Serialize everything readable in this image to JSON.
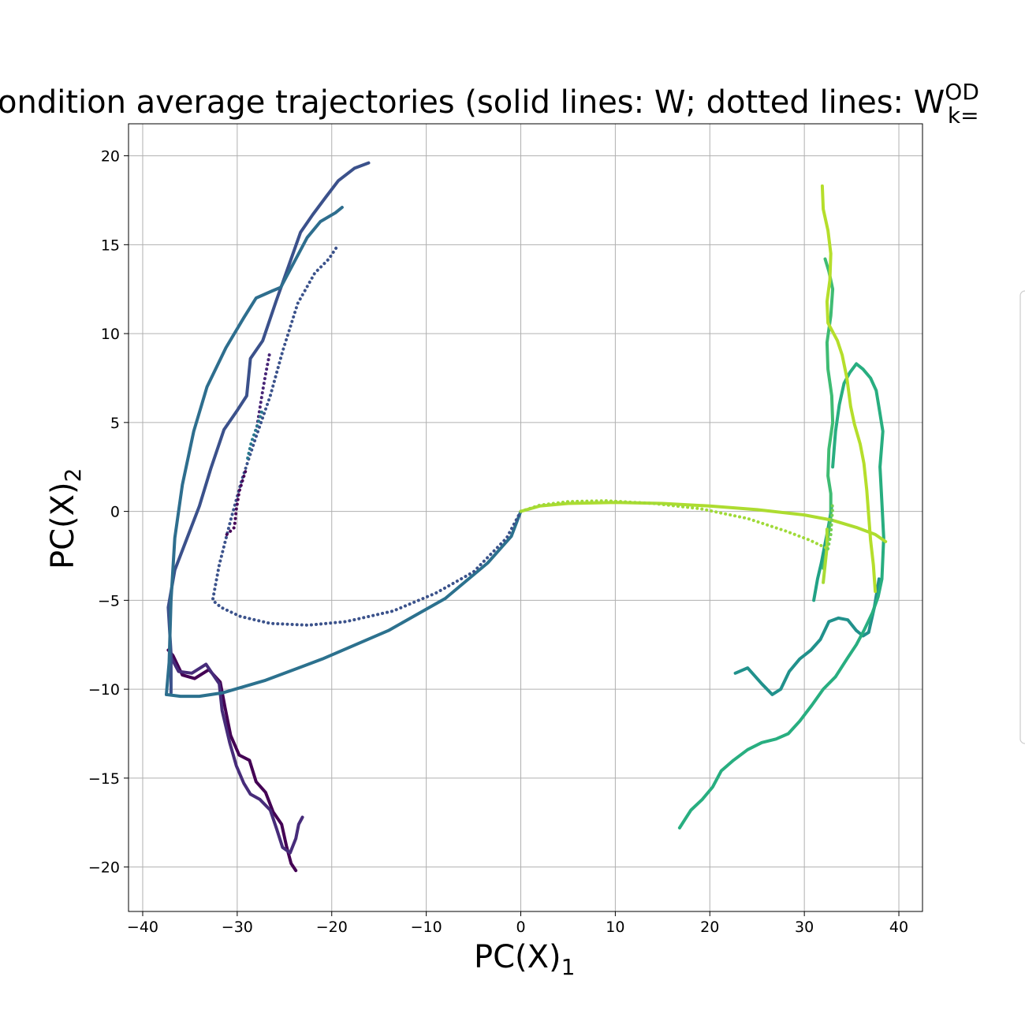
{
  "chart_data": {
    "type": "line",
    "title": "ondition average trajectories (solid lines: W; dotted lines: W",
    "title_sup": "OD",
    "title_sub": "k=",
    "xlabel": "PC(X)",
    "xlabel_sub": "1",
    "ylabel": "PC(X)",
    "ylabel_sub": "2",
    "xlim": [
      -41.5,
      42.5
    ],
    "ylim": [
      -22.5,
      21.8
    ],
    "xticks": [
      -40,
      -30,
      -20,
      -10,
      0,
      10,
      20,
      30,
      40
    ],
    "yticks": [
      -20,
      -15,
      -10,
      -5,
      0,
      5,
      10,
      15,
      20
    ],
    "grid": true,
    "legend": "right, cut off by figure edge",
    "series": [
      {
        "style": "solid",
        "color": "#440154",
        "points": [
          [
            -37.3,
            -7.8
          ],
          [
            -36.8,
            -8.1
          ],
          [
            -35.8,
            -9.2
          ],
          [
            -34.5,
            -9.4
          ],
          [
            -33.0,
            -8.9
          ],
          [
            -31.8,
            -9.6
          ],
          [
            -31.3,
            -11.0
          ],
          [
            -30.7,
            -12.6
          ],
          [
            -29.8,
            -13.7
          ],
          [
            -28.7,
            -14.0
          ],
          [
            -28.0,
            -15.2
          ],
          [
            -27.0,
            -15.8
          ],
          [
            -26.2,
            -16.9
          ],
          [
            -25.3,
            -17.6
          ],
          [
            -24.8,
            -18.8
          ],
          [
            -24.3,
            -19.8
          ],
          [
            -23.8,
            -20.2
          ]
        ]
      },
      {
        "style": "solid",
        "color": "#472c7a",
        "points": [
          [
            -37.1,
            -8.1
          ],
          [
            -36.2,
            -9.0
          ],
          [
            -34.8,
            -9.1
          ],
          [
            -33.3,
            -8.6
          ],
          [
            -31.9,
            -9.7
          ],
          [
            -31.6,
            -11.2
          ],
          [
            -30.8,
            -13.0
          ],
          [
            -30.1,
            -14.3
          ],
          [
            -29.3,
            -15.3
          ],
          [
            -28.6,
            -15.9
          ],
          [
            -27.6,
            -16.2
          ],
          [
            -26.5,
            -16.8
          ],
          [
            -25.8,
            -17.9
          ],
          [
            -25.2,
            -18.9
          ],
          [
            -24.4,
            -19.2
          ],
          [
            -23.8,
            -18.4
          ],
          [
            -23.5,
            -17.6
          ],
          [
            -23.1,
            -17.2
          ]
        ]
      },
      {
        "style": "solid",
        "color": "#3b518b",
        "points": [
          [
            -37.0,
            -10.2
          ],
          [
            -37.0,
            -8.0
          ],
          [
            -37.3,
            -5.4
          ],
          [
            -36.6,
            -3.3
          ],
          [
            -35.3,
            -1.5
          ],
          [
            -34.0,
            0.3
          ],
          [
            -32.8,
            2.4
          ],
          [
            -31.4,
            4.6
          ],
          [
            -30.1,
            5.6
          ],
          [
            -29.0,
            6.5
          ],
          [
            -28.6,
            8.6
          ],
          [
            -27.3,
            9.6
          ],
          [
            -25.9,
            11.8
          ],
          [
            -24.5,
            13.9
          ],
          [
            -23.3,
            15.7
          ],
          [
            -22.0,
            16.7
          ],
          [
            -20.6,
            17.7
          ],
          [
            -19.3,
            18.6
          ],
          [
            -17.6,
            19.3
          ],
          [
            -16.1,
            19.6
          ]
        ]
      },
      {
        "style": "solid",
        "color": "#2c718e",
        "points": [
          [
            -37.5,
            -10.3
          ],
          [
            -36.0,
            -10.4
          ],
          [
            -34.0,
            -10.4
          ],
          [
            -31.5,
            -10.2
          ],
          [
            -27.0,
            -9.5
          ],
          [
            -21.0,
            -8.3
          ],
          [
            -14.0,
            -6.7
          ],
          [
            -8.0,
            -4.9
          ],
          [
            -3.5,
            -2.9
          ],
          [
            -1.0,
            -1.4
          ],
          [
            0,
            0
          ]
        ]
      },
      {
        "style": "solid",
        "color": "#2e6e8e",
        "points": [
          [
            -37.5,
            -10.3
          ],
          [
            -37.2,
            -8.5
          ],
          [
            -37.0,
            -5.0
          ],
          [
            -36.6,
            -1.5
          ],
          [
            -35.8,
            1.5
          ],
          [
            -34.6,
            4.5
          ],
          [
            -33.2,
            7.0
          ],
          [
            -31.2,
            9.2
          ],
          [
            -29.3,
            10.9
          ],
          [
            -28.0,
            12.0
          ],
          [
            -26.3,
            12.4
          ],
          [
            -25.4,
            12.6
          ],
          [
            -24.0,
            14.0
          ],
          [
            -22.6,
            15.4
          ],
          [
            -21.2,
            16.3
          ],
          [
            -19.6,
            16.8
          ],
          [
            -18.9,
            17.1
          ]
        ]
      },
      {
        "style": "dotted",
        "color": "#3b528b",
        "points": [
          [
            0,
            0
          ],
          [
            -1.5,
            -1.5
          ],
          [
            -5.0,
            -3.4
          ],
          [
            -9.0,
            -4.6
          ],
          [
            -13.5,
            -5.6
          ],
          [
            -18.5,
            -6.2
          ],
          [
            -22.5,
            -6.4
          ],
          [
            -26.5,
            -6.3
          ],
          [
            -29.7,
            -5.9
          ],
          [
            -31.7,
            -5.4
          ],
          [
            -32.6,
            -5.0
          ],
          [
            -31.9,
            -3.0
          ],
          [
            -30.7,
            -0.5
          ],
          [
            -29.5,
            1.8
          ],
          [
            -28.0,
            4.2
          ],
          [
            -26.5,
            6.5
          ],
          [
            -25.2,
            9.0
          ],
          [
            -23.6,
            11.7
          ],
          [
            -21.8,
            13.4
          ],
          [
            -20.3,
            14.2
          ],
          [
            -19.3,
            15.0
          ]
        ]
      },
      {
        "style": "dotted",
        "color": "#450457",
        "points": [
          [
            -31.1,
            -1.3
          ],
          [
            -30.3,
            -0.9
          ],
          [
            -30.1,
            0.1
          ],
          [
            -29.8,
            1.1
          ],
          [
            -29.4,
            1.8
          ],
          [
            -29.1,
            2.3
          ]
        ]
      },
      {
        "style": "dotted",
        "color": "#482677",
        "points": [
          [
            -27.9,
            4.8
          ],
          [
            -27.6,
            5.8
          ],
          [
            -27.3,
            6.8
          ],
          [
            -27.0,
            7.7
          ],
          [
            -26.6,
            8.8
          ]
        ]
      },
      {
        "style": "dotted",
        "color": "#2a788e",
        "points": [
          [
            -28.9,
            3.0
          ],
          [
            -28.5,
            3.9
          ],
          [
            -27.9,
            4.8
          ],
          [
            -27.4,
            5.6
          ]
        ]
      },
      {
        "style": "solid",
        "color": "#21918c",
        "points": [
          [
            22.7,
            -9.1
          ],
          [
            24.0,
            -8.8
          ],
          [
            25.5,
            -9.7
          ],
          [
            26.6,
            -10.3
          ],
          [
            27.5,
            -10.0
          ],
          [
            28.4,
            -9.0
          ],
          [
            29.5,
            -8.3
          ],
          [
            30.7,
            -7.8
          ],
          [
            31.7,
            -7.2
          ],
          [
            32.6,
            -6.2
          ],
          [
            33.6,
            -6.0
          ],
          [
            34.6,
            -6.1
          ],
          [
            35.5,
            -6.7
          ],
          [
            36.2,
            -7.0
          ],
          [
            36.8,
            -6.8
          ],
          [
            37.4,
            -5.4
          ],
          [
            37.9,
            -3.8
          ]
        ]
      },
      {
        "style": "solid",
        "color": "#21a285",
        "points": [
          [
            31.0,
            -5.0
          ],
          [
            31.4,
            -3.8
          ],
          [
            31.8,
            -2.9
          ],
          [
            32.2,
            -1.8
          ],
          [
            32.5,
            -1.0
          ],
          [
            32.7,
            -0.4
          ],
          [
            32.9,
            0.3
          ]
        ]
      },
      {
        "style": "solid",
        "color": "#28ae80",
        "points": [
          [
            16.8,
            -17.8
          ],
          [
            17.4,
            -17.3
          ],
          [
            18.0,
            -16.8
          ],
          [
            19.2,
            -16.2
          ],
          [
            20.3,
            -15.5
          ],
          [
            21.2,
            -14.6
          ],
          [
            22.5,
            -14.0
          ],
          [
            24.0,
            -13.4
          ],
          [
            25.5,
            -13.0
          ],
          [
            27.0,
            -12.8
          ],
          [
            28.3,
            -12.5
          ],
          [
            29.5,
            -11.8
          ],
          [
            30.8,
            -10.9
          ],
          [
            32.0,
            -10.0
          ],
          [
            33.3,
            -9.3
          ],
          [
            34.5,
            -8.3
          ],
          [
            35.5,
            -7.5
          ],
          [
            36.3,
            -6.7
          ],
          [
            37.2,
            -5.7
          ],
          [
            37.8,
            -4.8
          ],
          [
            38.2,
            -3.8
          ],
          [
            38.4,
            -1.5
          ],
          [
            38.2,
            0.5
          ],
          [
            38.0,
            2.5
          ],
          [
            38.3,
            4.5
          ],
          [
            38.0,
            5.5
          ],
          [
            37.6,
            6.8
          ],
          [
            37.0,
            7.5
          ],
          [
            36.2,
            8.0
          ],
          [
            35.5,
            8.3
          ],
          [
            34.8,
            7.8
          ],
          [
            34.2,
            7.2
          ],
          [
            33.7,
            6.0
          ],
          [
            33.3,
            4.5
          ],
          [
            33.0,
            2.5
          ]
        ]
      },
      {
        "style": "solid",
        "color": "#3fbc73",
        "points": [
          [
            32.0,
            -3.2
          ],
          [
            32.3,
            -2.4
          ],
          [
            32.5,
            -1.4
          ],
          [
            32.8,
            -0.3
          ],
          [
            32.8,
            1.0
          ],
          [
            32.5,
            2.0
          ],
          [
            32.6,
            3.5
          ],
          [
            33.0,
            5.0
          ],
          [
            32.9,
            6.5
          ],
          [
            32.5,
            8.0
          ],
          [
            32.4,
            9.5
          ],
          [
            32.8,
            11.0
          ],
          [
            33.0,
            12.5
          ],
          [
            32.6,
            13.5
          ],
          [
            32.2,
            14.2
          ]
        ]
      },
      {
        "style": "solid",
        "color": "#addc30",
        "points": [
          [
            0,
            0
          ],
          [
            2.0,
            0.3
          ],
          [
            5.0,
            0.45
          ],
          [
            10.0,
            0.5
          ],
          [
            15.0,
            0.45
          ],
          [
            20.0,
            0.3
          ],
          [
            25.0,
            0.1
          ],
          [
            30.0,
            -0.2
          ],
          [
            33.0,
            -0.5
          ],
          [
            35.5,
            -0.9
          ],
          [
            37.5,
            -1.3
          ],
          [
            38.6,
            -1.7
          ]
        ]
      },
      {
        "style": "solid",
        "color": "#b5de2b",
        "points": [
          [
            37.5,
            -4.5
          ],
          [
            37.3,
            -3.0
          ],
          [
            37.0,
            -1.6
          ],
          [
            36.8,
            -0.2
          ],
          [
            36.6,
            1.2
          ],
          [
            36.3,
            2.7
          ],
          [
            35.9,
            3.8
          ],
          [
            35.3,
            4.9
          ],
          [
            34.9,
            5.9
          ],
          [
            34.5,
            7.5
          ],
          [
            34.0,
            8.8
          ],
          [
            33.5,
            9.6
          ],
          [
            33.0,
            10.1
          ],
          [
            32.5,
            10.6
          ],
          [
            32.4,
            11.8
          ],
          [
            32.7,
            13.0
          ],
          [
            32.8,
            14.5
          ],
          [
            32.5,
            15.8
          ],
          [
            32.0,
            17.0
          ],
          [
            31.9,
            18.3
          ]
        ]
      },
      {
        "style": "solid",
        "color": "#a8db34",
        "points": [
          [
            32.0,
            -4.0
          ],
          [
            32.2,
            -3.0
          ],
          [
            32.4,
            -2.0
          ],
          [
            32.4,
            -1.0
          ]
        ]
      },
      {
        "style": "dotted",
        "color": "#a0da39",
        "points": [
          [
            0,
            0
          ],
          [
            2.0,
            0.35
          ],
          [
            5.0,
            0.55
          ],
          [
            9.0,
            0.6
          ],
          [
            14.0,
            0.45
          ],
          [
            19.0,
            0.15
          ],
          [
            24.0,
            -0.4
          ],
          [
            28.0,
            -1.1
          ],
          [
            30.5,
            -1.6
          ],
          [
            32.5,
            -2.1
          ]
        ]
      },
      {
        "style": "dotted",
        "color": "#75d054",
        "points": [
          [
            32.5,
            -2.1
          ],
          [
            32.8,
            -1.3
          ],
          [
            32.9,
            -0.5
          ],
          [
            33.0,
            0.2
          ],
          [
            32.9,
            0.5
          ]
        ]
      }
    ]
  }
}
